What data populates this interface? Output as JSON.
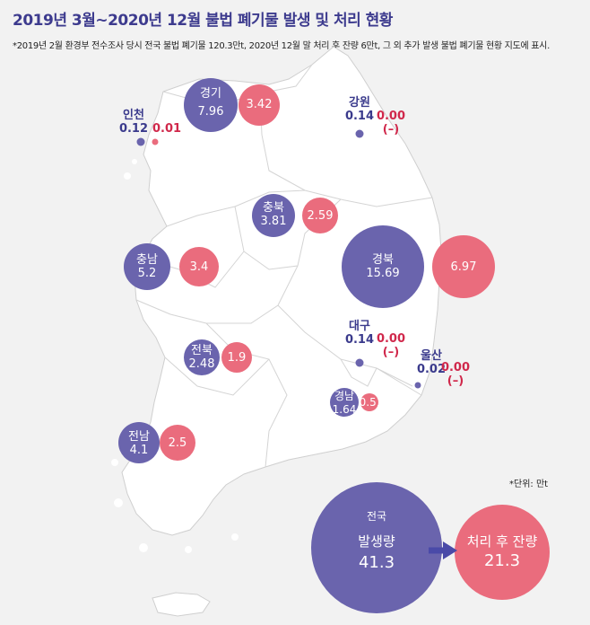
{
  "title": "2019년 3월~2020년 12월 불법 폐기물 발생 및 처리 현황",
  "note": "*2019년 2월 환경부 전수조사 당시 전국 불법 폐기물 120.3만t, 2020년 12월 말 처리 후 잔량 6만t, 그 외 추가 발생 불법 폐기물 현황 지도에 표시.",
  "unit": "*단위: 만t",
  "colors": {
    "generated": "#6a64ad",
    "remaining": "#ea6c7d",
    "map_fill": "#ffffff",
    "bg": "#f2f2f2"
  },
  "regions": {
    "gyeonggi": {
      "name": "경기",
      "generated": "7.96",
      "remaining": "3.42"
    },
    "incheon": {
      "name": "인천",
      "generated": "0.12",
      "remaining": "0.01"
    },
    "gangwon": {
      "name": "강원",
      "generated": "0.14",
      "remaining": "0.00",
      "remaining_sub": "(–)"
    },
    "chungbuk": {
      "name": "충북",
      "generated": "3.81",
      "remaining": "2.59"
    },
    "chungnam": {
      "name": "충남",
      "generated": "5.2",
      "remaining": "3.4"
    },
    "gyeongbuk": {
      "name": "경북",
      "generated": "15.69",
      "remaining": "6.97"
    },
    "daegu": {
      "name": "대구",
      "generated": "0.14",
      "remaining": "0.00",
      "remaining_sub": "(–)"
    },
    "ulsan": {
      "name": "울산",
      "generated": "0.02",
      "remaining": "0.00",
      "remaining_sub": "(–)"
    },
    "jeonbuk": {
      "name": "전북",
      "generated": "2.48",
      "remaining": "1.9"
    },
    "gyeongnam": {
      "name": "경남",
      "generated": "1.64",
      "remaining": "0.51"
    },
    "jeonnam": {
      "name": "전남",
      "generated": "4.1",
      "remaining": "2.5"
    }
  },
  "national": {
    "region": "전국",
    "generated_label": "발생량",
    "generated": "41.3",
    "remaining_label": "처리 후 잔량",
    "remaining": "21.3"
  }
}
